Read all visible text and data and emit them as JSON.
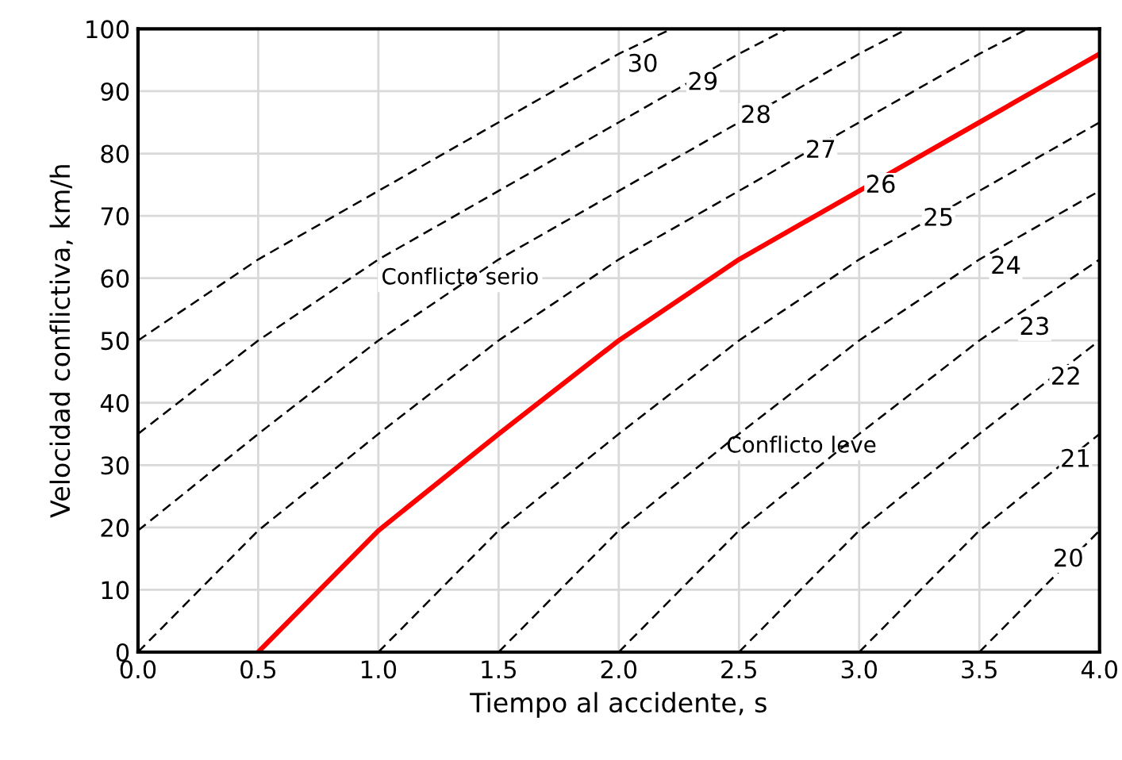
{
  "chart_data": {
    "type": "line",
    "xlabel": "Tiempo al accidente, s",
    "ylabel": "Velocidad conflictiva, km/h",
    "xlim": [
      0,
      4
    ],
    "ylim": [
      0,
      100
    ],
    "xticks": [
      {
        "value": 0,
        "label": "0.0"
      },
      {
        "value": 0.5,
        "label": "0.5"
      },
      {
        "value": 1,
        "label": "1.0"
      },
      {
        "value": 1.5,
        "label": "1.5"
      },
      {
        "value": 2,
        "label": "2.0"
      },
      {
        "value": 2.5,
        "label": "2.5"
      },
      {
        "value": 3,
        "label": "3.0"
      },
      {
        "value": 3.5,
        "label": "3.5"
      },
      {
        "value": 4,
        "label": "4.0"
      }
    ],
    "yticks": [
      0,
      10,
      20,
      30,
      40,
      50,
      60,
      70,
      80,
      90,
      100
    ],
    "grid": true,
    "legend": false,
    "marker": "none",
    "series": [
      {
        "color": "#000000",
        "line_style": "dashed",
        "x": [
          0,
          0.5,
          1,
          1.5,
          2,
          2.22
        ],
        "values": [
          50,
          63,
          74,
          85,
          96,
          100
        ]
      },
      {
        "color": "#000000",
        "line_style": "dashed",
        "x": [
          0,
          0.5,
          1,
          1.5,
          2,
          2.5,
          2.7
        ],
        "values": [
          35,
          50,
          63,
          74,
          85,
          96,
          100
        ]
      },
      {
        "color": "#000000",
        "line_style": "dashed",
        "x": [
          0,
          0.5,
          1,
          1.5,
          2,
          2.5,
          3,
          3.2
        ],
        "values": [
          19.5,
          35,
          50,
          63,
          74,
          85,
          96,
          100
        ]
      },
      {
        "color": "#000000",
        "line_style": "dashed",
        "x": [
          0,
          0.5,
          1,
          1.5,
          2,
          2.5,
          3,
          3.5,
          3.7
        ],
        "values": [
          0,
          19.5,
          35,
          50,
          63,
          74,
          85,
          96,
          100
        ]
      },
      {
        "color": "#ff0000",
        "line_style": "solid",
        "x": [
          0.5,
          1,
          1.5,
          2,
          2.5,
          3,
          3.5,
          4
        ],
        "values": [
          0,
          19.5,
          35,
          50,
          63,
          74,
          85,
          96
        ]
      },
      {
        "color": "#000000",
        "line_style": "dashed",
        "x": [
          1,
          1.5,
          2,
          2.5,
          3,
          3.5,
          4
        ],
        "values": [
          0,
          19.5,
          35,
          50,
          63,
          74,
          85
        ]
      },
      {
        "color": "#000000",
        "line_style": "dashed",
        "x": [
          1.5,
          2,
          2.5,
          3,
          3.5,
          4
        ],
        "values": [
          0,
          19.5,
          35,
          50,
          63,
          74
        ]
      },
      {
        "color": "#000000",
        "line_style": "dashed",
        "x": [
          2,
          2.5,
          3,
          3.5,
          4
        ],
        "values": [
          0,
          19.5,
          35,
          50,
          63
        ]
      },
      {
        "color": "#000000",
        "line_style": "dashed",
        "x": [
          2.5,
          3,
          3.5,
          4
        ],
        "values": [
          0,
          19.5,
          35,
          50
        ]
      },
      {
        "color": "#000000",
        "line_style": "dashed",
        "x": [
          3,
          3.5,
          4
        ],
        "values": [
          0,
          19.5,
          35
        ]
      },
      {
        "color": "#000000",
        "line_style": "dashed",
        "x": [
          3.5,
          4
        ],
        "values": [
          0,
          19.5
        ]
      }
    ],
    "annotations": [
      {
        "text": "30",
        "x": 2.1,
        "y": 94.2
      },
      {
        "text": "29",
        "x": 2.35,
        "y": 91.3
      },
      {
        "text": "28",
        "x": 2.57,
        "y": 86
      },
      {
        "text": "27",
        "x": 2.84,
        "y": 80.4
      },
      {
        "text": "26",
        "x": 3.09,
        "y": 74.8
      },
      {
        "text": "25",
        "x": 3.33,
        "y": 69.5
      },
      {
        "text": "24",
        "x": 3.61,
        "y": 61.8
      },
      {
        "text": "23",
        "x": 3.73,
        "y": 52
      },
      {
        "text": "22",
        "x": 3.86,
        "y": 44
      },
      {
        "text": "21",
        "x": 3.9,
        "y": 30.8
      },
      {
        "text": "20",
        "x": 3.87,
        "y": 14.8
      },
      "Conflicto serio",
      "Conflicto leve"
    ]
  }
}
